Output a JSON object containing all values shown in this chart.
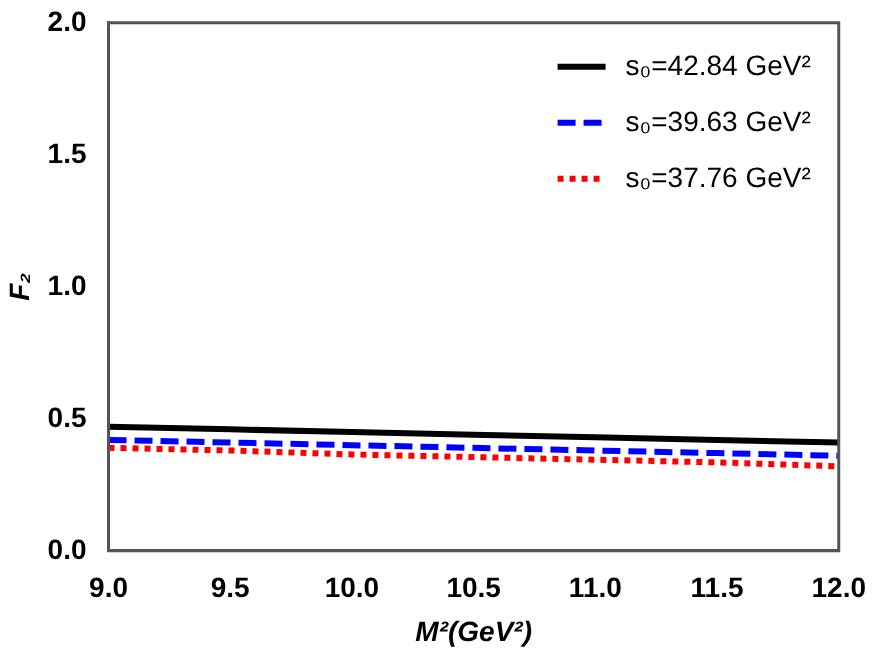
{
  "chart_data": {
    "type": "line",
    "xlabel": "M²(GeV²)",
    "ylabel": "F₂",
    "x": [
      9.0,
      9.5,
      10.0,
      10.5,
      11.0,
      11.5,
      12.0
    ],
    "series": [
      {
        "name": "s₀=42.84 GeV²",
        "color": "#000000",
        "line_style": "solid",
        "values": [
          0.47,
          0.46,
          0.45,
          0.44,
          0.43,
          0.42,
          0.41
        ]
      },
      {
        "name": "s₀=39.63 GeV²",
        "color": "#0000ff",
        "line_style": "dashed",
        "values": [
          0.42,
          0.41,
          0.4,
          0.39,
          0.38,
          0.37,
          0.36
        ]
      },
      {
        "name": "s₀=37.76 GeV²",
        "color": "#ff0000",
        "line_style": "dotted",
        "values": [
          0.39,
          0.38,
          0.365,
          0.355,
          0.345,
          0.335,
          0.32
        ]
      }
    ],
    "xlim": [
      9.0,
      12.0
    ],
    "xticks": [
      {
        "value": 9,
        "label": "9.0"
      },
      9.5,
      {
        "value": 10,
        "label": "10.0"
      },
      10.5,
      {
        "value": 11,
        "label": "11.0"
      },
      11.5,
      {
        "value": 12,
        "label": "12.0"
      }
    ],
    "ylim": [
      0,
      2.0
    ],
    "yticks": [
      {
        "value": 0,
        "label": "0.0"
      },
      0.5,
      {
        "value": 1,
        "label": "1.0"
      },
      1.5,
      {
        "value": 2,
        "label": "2.0"
      }
    ],
    "grid": false,
    "legend": "top right",
    "marker": "none"
  }
}
